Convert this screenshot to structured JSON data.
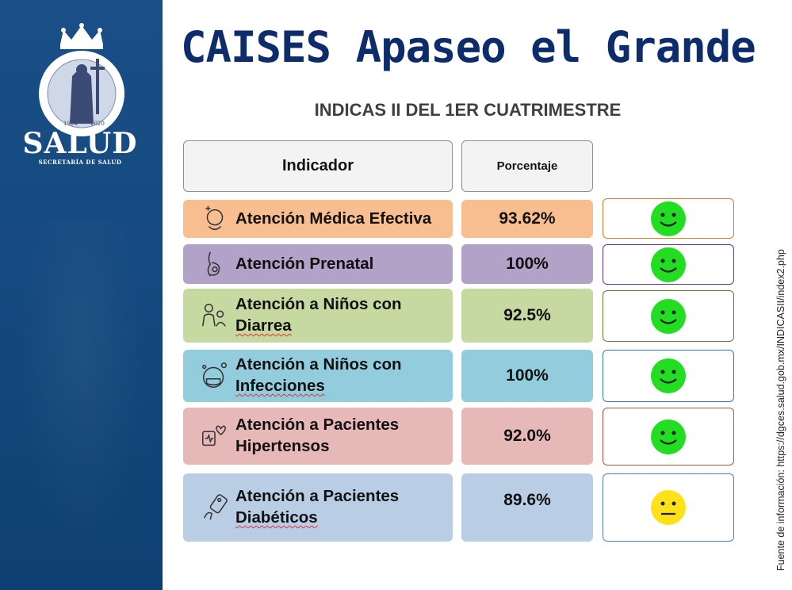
{
  "header": {
    "title": "CAISES Apaseo el Grande",
    "subtitle": "INDICAS II DEL 1ER CUATRIMESTRE"
  },
  "logo": {
    "name": "SALUD",
    "subtitle": "SECRETARÍA DE SALUD",
    "seal_text": "GOBIERNO DEL ESTADO DE GUANAJUATO",
    "seal_years": [
      "1924",
      "2020"
    ]
  },
  "table": {
    "columns": [
      "Indicador",
      "Porcentaje"
    ],
    "rows": [
      {
        "line1": "Atención Médica Efectiva",
        "line2": "",
        "value": "93.62%",
        "status": "green",
        "icon": "doctor-head-icon",
        "color": "#f9be8f",
        "border": "#e07b2c"
      },
      {
        "line1": "Atención Prenatal",
        "line2": "",
        "value": "100%",
        "status": "green",
        "icon": "pregnant-icon",
        "color": "#b3a2c8",
        "border": "#7030a0"
      },
      {
        "line1": "Atención a Niños con",
        "line2": "Diarrea",
        "value": "92.5%",
        "status": "green",
        "icon": "child-care-icon",
        "color": "#c5d9a0",
        "border": "#5f7f2e"
      },
      {
        "line1": "Atención a Niños con",
        "line2": "Infecciones",
        "value": "100%",
        "status": "green",
        "icon": "child-mask-icon",
        "color": "#93cddd",
        "border": "#2f7ea0"
      },
      {
        "line1": "Atención a Pacientes",
        "line2": "Hipertensos",
        "value": "92.0%",
        "status": "green",
        "icon": "heart-patient-icon",
        "color": "#e6b9b8",
        "border": "#c0504d"
      },
      {
        "line1": "Atención a Pacientes",
        "line2": "Diabéticos",
        "value": "89.6%",
        "status": "yellow",
        "icon": "glucose-meter-icon",
        "color": "#b9cde5",
        "border": "#4f81bd"
      }
    ]
  },
  "source": "Fuente de información: https://dgces.salud.gob.mx/INDICASII/index2.php",
  "colors": {
    "sidebar": "#154a80",
    "title": "#0c2c6b",
    "green_face": "#22dd22",
    "yellow_face": "#ffe11a"
  }
}
